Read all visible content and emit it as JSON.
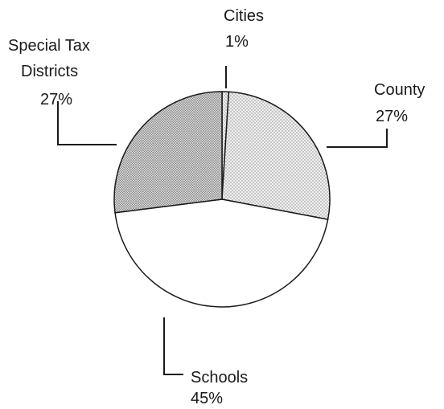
{
  "chart_data": {
    "type": "pie",
    "title": "",
    "slices": [
      {
        "label": "Cities",
        "value": 1,
        "value_label": "1%",
        "fill": "#d8d8d8",
        "pattern": "light"
      },
      {
        "label": "County",
        "value": 27,
        "value_label": "27%",
        "fill": "#e2e2e2",
        "pattern": "light"
      },
      {
        "label": "Schools",
        "value": 45,
        "value_label": "45%",
        "fill": "#ffffff",
        "pattern": "none"
      },
      {
        "label": "Special Tax Districts",
        "value": 27,
        "value_label": "27%",
        "fill": "#c4c4c4",
        "pattern": "dense"
      }
    ],
    "start_angle_deg": 0,
    "direction": "clockwise",
    "legend": "none",
    "colors": {
      "stroke": "#1a1a1a",
      "text": "#1a1a1a"
    }
  }
}
